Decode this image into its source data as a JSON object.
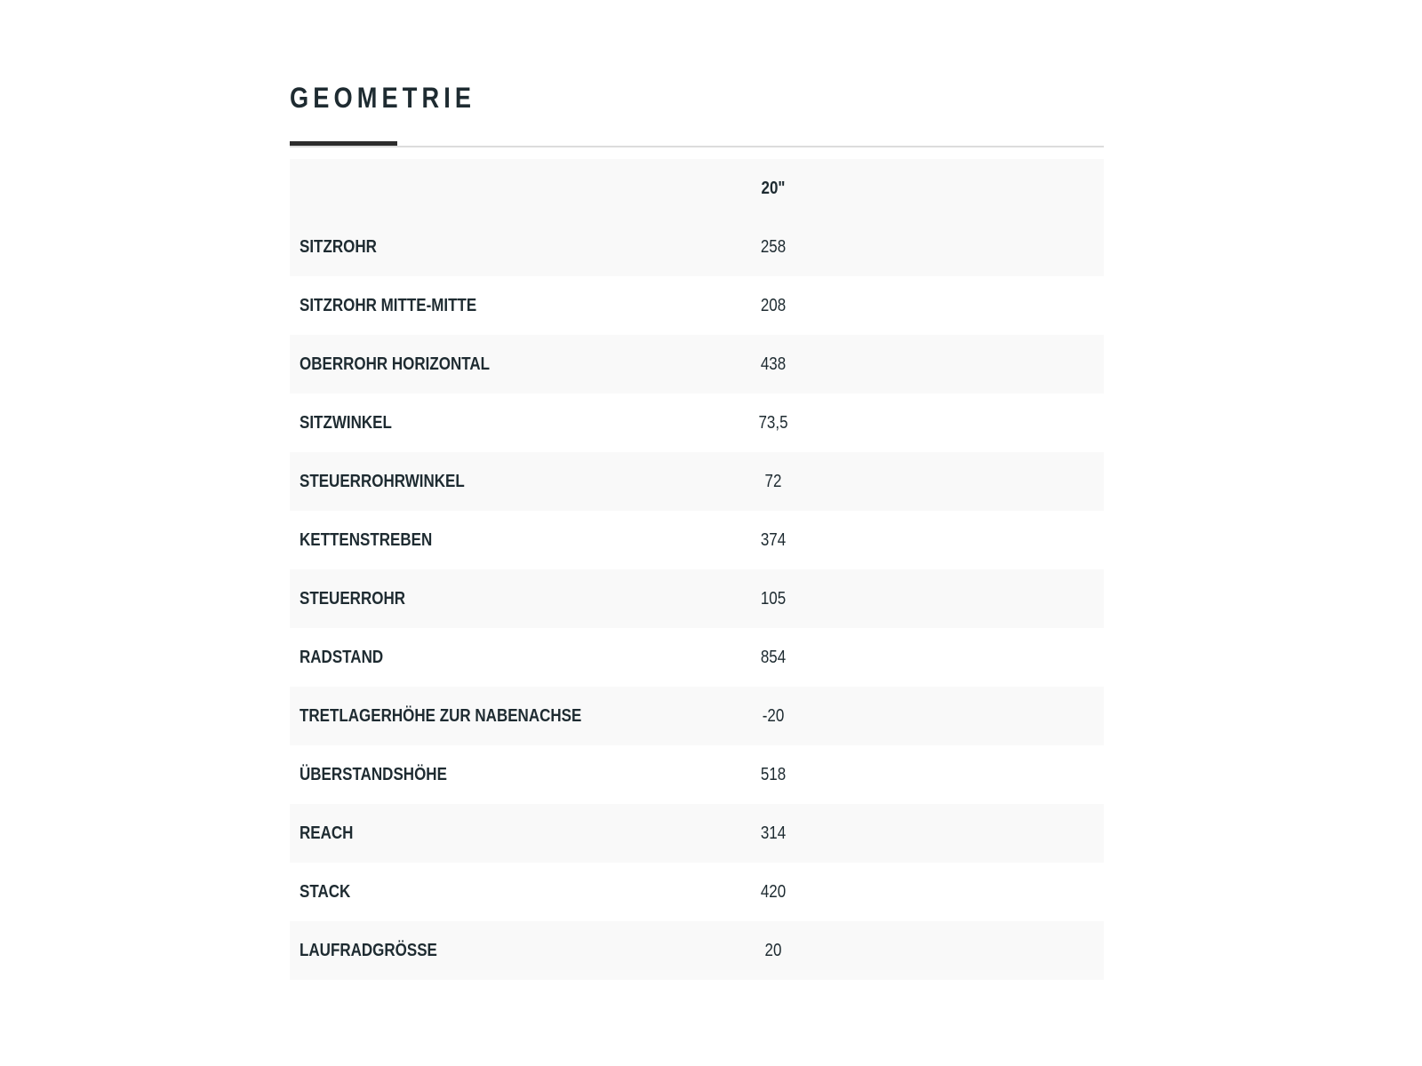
{
  "title": "GEOMETRIE",
  "table": {
    "header": {
      "label": "",
      "size": "20\""
    },
    "rows": [
      {
        "label": "SITZROHR",
        "value": "258"
      },
      {
        "label": "SITZROHR MITTE-MITTE",
        "value": "208"
      },
      {
        "label": "OBERROHR HORIZONTAL",
        "value": "438"
      },
      {
        "label": "SITZWINKEL",
        "value": "73,5"
      },
      {
        "label": "STEUERROHRWINKEL",
        "value": "72"
      },
      {
        "label": "KETTENSTREBEN",
        "value": "374"
      },
      {
        "label": "STEUERROHR",
        "value": "105"
      },
      {
        "label": "RADSTAND",
        "value": "854"
      },
      {
        "label": "TRETLAGERHÖHE ZUR NABENACHSE",
        "value": "-20"
      },
      {
        "label": "ÜBERSTANDSHÖHE",
        "value": "518"
      },
      {
        "label": "REACH",
        "value": "314"
      },
      {
        "label": "STACK",
        "value": "420"
      },
      {
        "label": "LAUFRADGRÖSSE",
        "value": "20"
      }
    ]
  }
}
